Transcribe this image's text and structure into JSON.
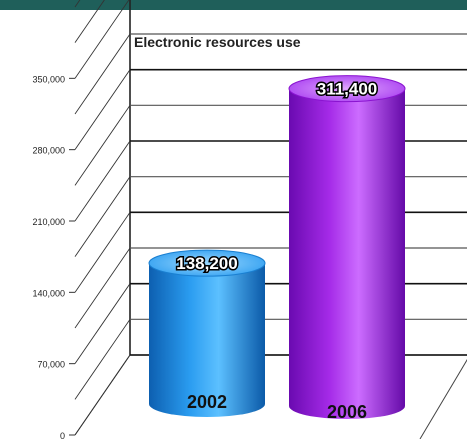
{
  "chart_data": {
    "type": "bar",
    "title": "Electronic resources use",
    "categories": [
      "2002",
      "2006"
    ],
    "values": [
      138200,
      311400
    ],
    "value_labels": [
      "138,200",
      "311,400"
    ],
    "ylim": [
      0,
      420000
    ],
    "yticks": [
      0,
      70000,
      140000,
      210000,
      280000,
      350000
    ],
    "ytick_labels": [
      "0",
      "70,000",
      "140,000",
      "210,000",
      "280,000",
      "350,000"
    ],
    "xlabel": "",
    "ylabel": "",
    "grid": true,
    "bar_shape": "cylinder",
    "colors": {
      "header_bar": "#1f5f5a",
      "bar_2002": "#1f8fe0",
      "bar_2002_light": "#7cc9ff",
      "bar_2006": "#9a20dd",
      "bar_2006_light": "#d27cff"
    }
  }
}
